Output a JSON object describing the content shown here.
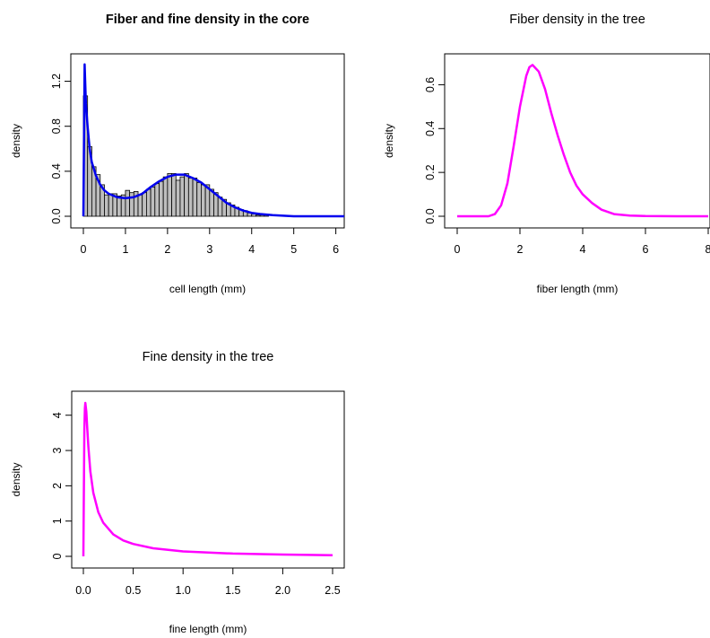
{
  "chart_data": [
    {
      "id": "core",
      "type": "bar",
      "title": "Fiber and fine density in the core",
      "title_bold": true,
      "xlabel": "cell length (mm)",
      "ylabel": "density",
      "xlim": [
        0,
        6.2
      ],
      "ylim": [
        0,
        1.38
      ],
      "xticks": [
        0,
        1,
        2,
        3,
        4,
        5,
        6
      ],
      "yticks": [
        0.0,
        0.4,
        0.8,
        1.2
      ],
      "ytick_labels": [
        "0.0",
        "0.4",
        "0.8",
        "1.2"
      ],
      "bin_width": 0.1,
      "bin_start": 0,
      "histogram_values": [
        1.07,
        0.62,
        0.44,
        0.37,
        0.28,
        0.19,
        0.2,
        0.2,
        0.18,
        0.19,
        0.23,
        0.21,
        0.22,
        0.19,
        0.21,
        0.24,
        0.26,
        0.29,
        0.31,
        0.35,
        0.38,
        0.38,
        0.32,
        0.35,
        0.38,
        0.34,
        0.34,
        0.3,
        0.28,
        0.28,
        0.24,
        0.21,
        0.17,
        0.15,
        0.12,
        0.1,
        0.08,
        0.06,
        0.05,
        0.03,
        0.02,
        0.01,
        0.01,
        0.01
      ],
      "histogram_color": "#bebebe",
      "curve_color": "#0000ee",
      "curve": {
        "x": [
          0.0,
          0.03,
          0.06,
          0.1,
          0.15,
          0.2,
          0.3,
          0.4,
          0.5,
          0.6,
          0.8,
          1.0,
          1.2,
          1.4,
          1.6,
          1.8,
          2.0,
          2.2,
          2.4,
          2.6,
          2.8,
          3.0,
          3.2,
          3.4,
          3.6,
          3.8,
          4.0,
          4.2,
          4.5,
          5.0,
          5.5,
          6.2
        ],
        "y": [
          0.0,
          1.35,
          1.0,
          0.8,
          0.6,
          0.48,
          0.36,
          0.28,
          0.23,
          0.2,
          0.17,
          0.16,
          0.17,
          0.2,
          0.26,
          0.31,
          0.35,
          0.37,
          0.37,
          0.34,
          0.3,
          0.24,
          0.18,
          0.12,
          0.08,
          0.05,
          0.03,
          0.02,
          0.01,
          0.0,
          0.0,
          0.0
        ]
      }
    },
    {
      "id": "fiber",
      "type": "line",
      "title": "Fiber density in the tree",
      "title_bold": false,
      "xlabel": "fiber length (mm)",
      "ylabel": "density",
      "xlim": [
        0,
        8
      ],
      "ylim": [
        0,
        0.7
      ],
      "xticks": [
        0,
        2,
        4,
        6,
        8
      ],
      "yticks": [
        0.0,
        0.2,
        0.4,
        0.6
      ],
      "ytick_labels": [
        "0.0",
        "0.2",
        "0.4",
        "0.6"
      ],
      "curve_color": "#ff00ff",
      "curve": {
        "x": [
          0.0,
          0.5,
          1.0,
          1.2,
          1.4,
          1.6,
          1.8,
          2.0,
          2.2,
          2.3,
          2.4,
          2.6,
          2.8,
          3.0,
          3.2,
          3.4,
          3.6,
          3.8,
          4.0,
          4.3,
          4.6,
          5.0,
          5.5,
          6.0,
          7.0,
          8.0
        ],
        "y": [
          0.0,
          0.0,
          0.0,
          0.01,
          0.05,
          0.15,
          0.32,
          0.5,
          0.64,
          0.68,
          0.69,
          0.66,
          0.58,
          0.47,
          0.37,
          0.28,
          0.2,
          0.14,
          0.1,
          0.06,
          0.03,
          0.01,
          0.003,
          0.001,
          0.0,
          0.0
        ]
      }
    },
    {
      "id": "fine",
      "type": "line",
      "title": "Fine density in the tree",
      "title_bold": false,
      "xlabel": "fine length (mm)",
      "ylabel": "density",
      "xlim": [
        0,
        2.5
      ],
      "ylim": [
        0,
        4.4
      ],
      "xticks": [
        0.0,
        0.5,
        1.0,
        1.5,
        2.0,
        2.5
      ],
      "xtick_labels": [
        "0.0",
        "0.5",
        "1.0",
        "1.5",
        "2.0",
        "2.5"
      ],
      "yticks": [
        0,
        1,
        2,
        3,
        4
      ],
      "ytick_labels": [
        "0",
        "1",
        "2",
        "3",
        "4"
      ],
      "curve_color": "#ff00ff",
      "curve": {
        "x": [
          0.0,
          0.005,
          0.01,
          0.015,
          0.02,
          0.03,
          0.04,
          0.05,
          0.07,
          0.1,
          0.15,
          0.2,
          0.3,
          0.4,
          0.5,
          0.7,
          1.0,
          1.5,
          2.0,
          2.5
        ],
        "y": [
          0.0,
          2.0,
          3.6,
          4.2,
          4.35,
          4.1,
          3.6,
          3.1,
          2.4,
          1.8,
          1.25,
          0.95,
          0.62,
          0.45,
          0.35,
          0.23,
          0.14,
          0.08,
          0.05,
          0.03
        ]
      }
    }
  ]
}
